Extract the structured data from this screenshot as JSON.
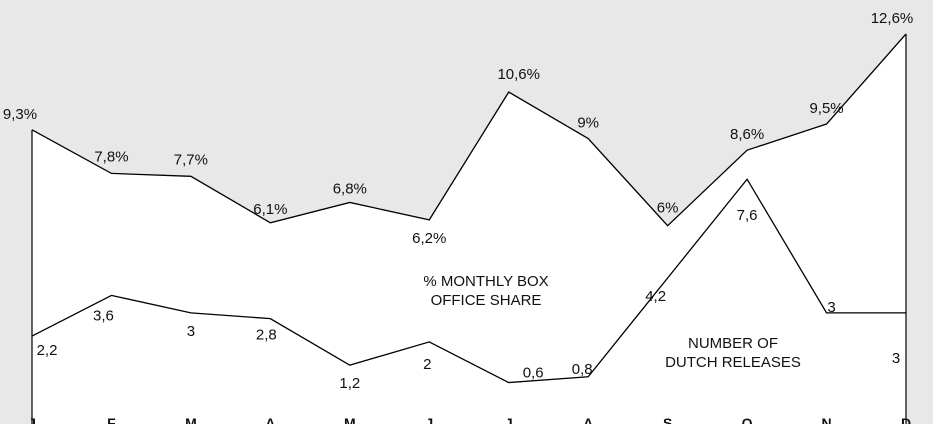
{
  "chart_data": {
    "type": "line",
    "categories": [
      "J",
      "F",
      "M",
      "A",
      "M",
      "J",
      "J",
      "A",
      "S",
      "O",
      "N",
      "D"
    ],
    "series": [
      {
        "name": "% MONTHLY BOX OFFICE SHARE",
        "color": "#000000",
        "values": [
          9.3,
          7.8,
          7.7,
          6.1,
          6.8,
          6.2,
          10.6,
          9,
          6,
          8.6,
          9.5,
          12.6
        ],
        "value_labels": [
          "9,3%",
          "7,8%",
          "7,7%",
          "6,1%",
          "6,8%",
          "6,2%",
          "10,6%",
          "9%",
          "6%",
          "8,6%",
          "9,5%",
          "12,6%"
        ]
      },
      {
        "name": "NUMBER OF DUTCH RELEASES",
        "color": "#000000",
        "values": [
          2.2,
          3.6,
          3,
          2.8,
          1.2,
          2,
          0.6,
          0.8,
          4.2,
          7.6,
          3,
          3
        ],
        "value_labels": [
          "2,2",
          "3,6",
          "3",
          "2,8",
          "1,2",
          "2",
          "0,6",
          "0,8",
          "4,2",
          "7,6",
          "3",
          "3"
        ]
      }
    ],
    "annotations": [
      [
        "% MONTHLY BOX",
        "OFFICE SHARE"
      ],
      [
        "NUMBER OF",
        "DUTCH RELEASES"
      ]
    ],
    "ylim": [
      0,
      13.7
    ]
  }
}
